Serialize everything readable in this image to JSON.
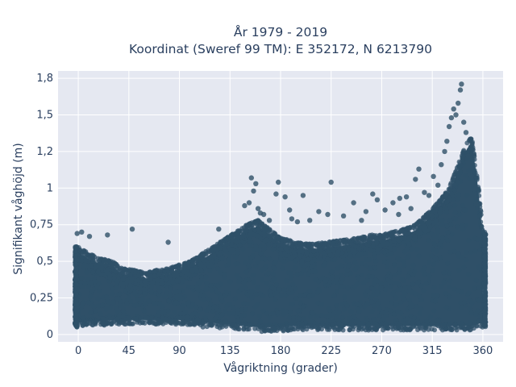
{
  "chart_data": {
    "type": "scatter",
    "title_lines": [
      "År 1979 - 2019",
      "Koordinat (Sweref 99 TM): E 352172, N 6213790"
    ],
    "xlabel": "Vågriktning (grader)",
    "ylabel": "Signifikant våghöjd (m)",
    "xlim": [
      -18,
      378
    ],
    "ylim": [
      -0.05,
      1.8
    ],
    "xticks": [
      0,
      45,
      90,
      135,
      180,
      225,
      270,
      315,
      360
    ],
    "xtick_labels": [
      "0",
      "45",
      "90",
      "135",
      "180",
      "225",
      "270",
      "315",
      "360"
    ],
    "yticks": [
      0,
      0.25,
      0.5,
      0.75,
      1,
      1.25,
      1.5,
      1.75
    ],
    "ytick_labels": [
      "0",
      "0,25",
      "0,5",
      "0,75",
      "1",
      "1,2",
      "1,5",
      "1,8"
    ],
    "grid": true,
    "background": "#e5e8f1",
    "marker_color": "#2f5068",
    "density_band": {
      "x": [
        0,
        10,
        20,
        30,
        40,
        50,
        60,
        70,
        80,
        90,
        100,
        110,
        120,
        130,
        140,
        150,
        160,
        170,
        180,
        190,
        200,
        210,
        220,
        230,
        240,
        250,
        260,
        270,
        280,
        290,
        300,
        310,
        320,
        330,
        335,
        340,
        345,
        350,
        355,
        360
      ],
      "ymin": [
        0.05,
        0.06,
        0.06,
        0.07,
        0.07,
        0.07,
        0.07,
        0.07,
        0.07,
        0.07,
        0.06,
        0.05,
        0.05,
        0.04,
        0.04,
        0.03,
        0.02,
        0.02,
        0.02,
        0.03,
        0.03,
        0.03,
        0.03,
        0.03,
        0.03,
        0.03,
        0.03,
        0.03,
        0.03,
        0.03,
        0.03,
        0.03,
        0.03,
        0.03,
        0.03,
        0.03,
        0.03,
        0.03,
        0.04,
        0.05
      ],
      "ymax": [
        0.6,
        0.55,
        0.52,
        0.5,
        0.45,
        0.44,
        0.42,
        0.44,
        0.45,
        0.48,
        0.5,
        0.55,
        0.6,
        0.65,
        0.7,
        0.75,
        0.78,
        0.72,
        0.66,
        0.64,
        0.62,
        0.62,
        0.63,
        0.64,
        0.65,
        0.66,
        0.68,
        0.68,
        0.7,
        0.72,
        0.75,
        0.82,
        0.9,
        1.0,
        1.1,
        1.2,
        1.3,
        1.35,
        1.1,
        0.7
      ]
    },
    "outliers": [
      {
        "x": -1,
        "y": 0.69
      },
      {
        "x": 3,
        "y": 0.7
      },
      {
        "x": 10,
        "y": 0.67
      },
      {
        "x": 26,
        "y": 0.68
      },
      {
        "x": 48,
        "y": 0.72
      },
      {
        "x": 80,
        "y": 0.63
      },
      {
        "x": 125,
        "y": 0.72
      },
      {
        "x": 148,
        "y": 0.88
      },
      {
        "x": 152,
        "y": 0.9
      },
      {
        "x": 154,
        "y": 1.07
      },
      {
        "x": 156,
        "y": 0.98
      },
      {
        "x": 158,
        "y": 1.03
      },
      {
        "x": 160,
        "y": 0.86
      },
      {
        "x": 162,
        "y": 0.83
      },
      {
        "x": 165,
        "y": 0.82
      },
      {
        "x": 170,
        "y": 0.78
      },
      {
        "x": 176,
        "y": 0.96
      },
      {
        "x": 178,
        "y": 1.04
      },
      {
        "x": 184,
        "y": 0.94
      },
      {
        "x": 188,
        "y": 0.85
      },
      {
        "x": 190,
        "y": 0.79
      },
      {
        "x": 195,
        "y": 0.77
      },
      {
        "x": 200,
        "y": 0.95
      },
      {
        "x": 206,
        "y": 0.78
      },
      {
        "x": 214,
        "y": 0.84
      },
      {
        "x": 225,
        "y": 1.04
      },
      {
        "x": 222,
        "y": 0.82
      },
      {
        "x": 236,
        "y": 0.81
      },
      {
        "x": 245,
        "y": 0.9
      },
      {
        "x": 252,
        "y": 0.78
      },
      {
        "x": 256,
        "y": 0.84
      },
      {
        "x": 262,
        "y": 0.96
      },
      {
        "x": 266,
        "y": 0.92
      },
      {
        "x": 273,
        "y": 0.85
      },
      {
        "x": 280,
        "y": 0.9
      },
      {
        "x": 285,
        "y": 0.82
      },
      {
        "x": 286,
        "y": 0.93
      },
      {
        "x": 292,
        "y": 0.94
      },
      {
        "x": 296,
        "y": 0.86
      },
      {
        "x": 300,
        "y": 1.06
      },
      {
        "x": 303,
        "y": 1.13
      },
      {
        "x": 308,
        "y": 0.97
      },
      {
        "x": 312,
        "y": 0.95
      },
      {
        "x": 316,
        "y": 1.08
      },
      {
        "x": 320,
        "y": 1.02
      },
      {
        "x": 323,
        "y": 1.16
      },
      {
        "x": 326,
        "y": 1.25
      },
      {
        "x": 328,
        "y": 1.32
      },
      {
        "x": 330,
        "y": 1.42
      },
      {
        "x": 332,
        "y": 1.48
      },
      {
        "x": 334,
        "y": 1.54
      },
      {
        "x": 336,
        "y": 1.5
      },
      {
        "x": 338,
        "y": 1.58
      },
      {
        "x": 340,
        "y": 1.67
      },
      {
        "x": 341,
        "y": 1.71
      },
      {
        "x": 343,
        "y": 1.45
      },
      {
        "x": 345,
        "y": 1.38
      },
      {
        "x": 347,
        "y": 1.22
      },
      {
        "x": 350,
        "y": 1.08
      },
      {
        "x": 352,
        "y": 0.99
      },
      {
        "x": 354,
        "y": 0.89
      }
    ]
  }
}
